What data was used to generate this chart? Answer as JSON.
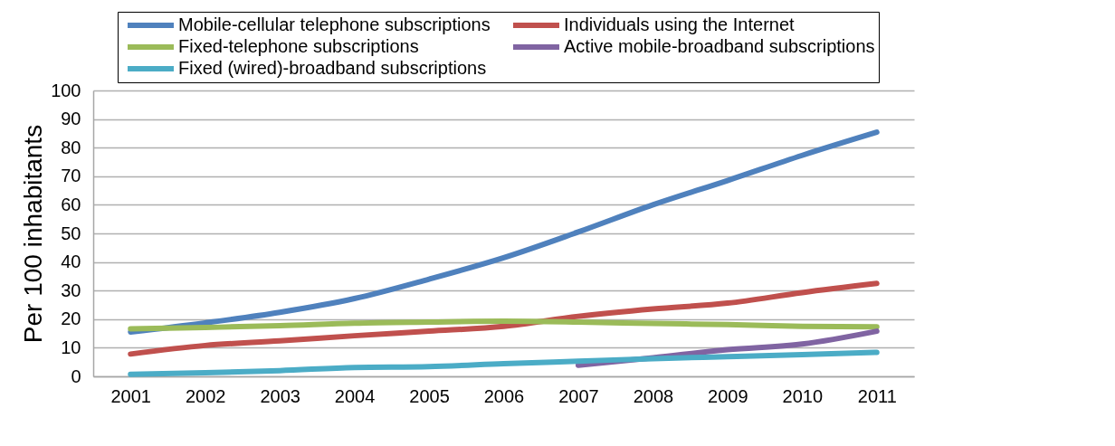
{
  "chart_data": {
    "type": "line",
    "ylabel": "Per 100 inhabitants",
    "categories": [
      "2001",
      "2002",
      "2003",
      "2004",
      "2005",
      "2006",
      "2007",
      "2008",
      "2009",
      "2010",
      "2011"
    ],
    "series": [
      {
        "name": "Mobile-cellular telephone subscriptions",
        "color": "#4f81bd",
        "values": [
          15.5,
          18.7,
          22.4,
          27.2,
          34,
          41.5,
          50.5,
          60,
          68.5,
          77.3,
          85.4
        ]
      },
      {
        "name": "Individuals using the Internet",
        "color": "#c0504d",
        "values": [
          7.8,
          10.8,
          12.4,
          14.2,
          15.8,
          17.5,
          21,
          23.6,
          25.6,
          29.3,
          32.5
        ]
      },
      {
        "name": "Fixed-telephone subscriptions",
        "color": "#9bbb59",
        "values": [
          16.6,
          17.1,
          17.7,
          18.6,
          19,
          19.3,
          19,
          18.5,
          18.1,
          17.5,
          17.3
        ]
      },
      {
        "name": "Active mobile-broadband subscriptions",
        "color": "#8064a2",
        "values": [
          null,
          null,
          null,
          null,
          null,
          null,
          3.9,
          6.5,
          9.3,
          11.3,
          15.8
        ]
      },
      {
        "name": "Fixed (wired)-broadband subscriptions",
        "color": "#4bacc6",
        "values": [
          0.7,
          1.3,
          2,
          3.1,
          3.4,
          4.4,
          5.3,
          6.2,
          6.9,
          7.6,
          8.4
        ]
      }
    ],
    "ylim": [
      0,
      100
    ],
    "yticks": [
      0,
      10,
      20,
      30,
      40,
      50,
      60,
      70,
      80,
      90,
      100
    ],
    "grid": "y",
    "legend": "top"
  }
}
